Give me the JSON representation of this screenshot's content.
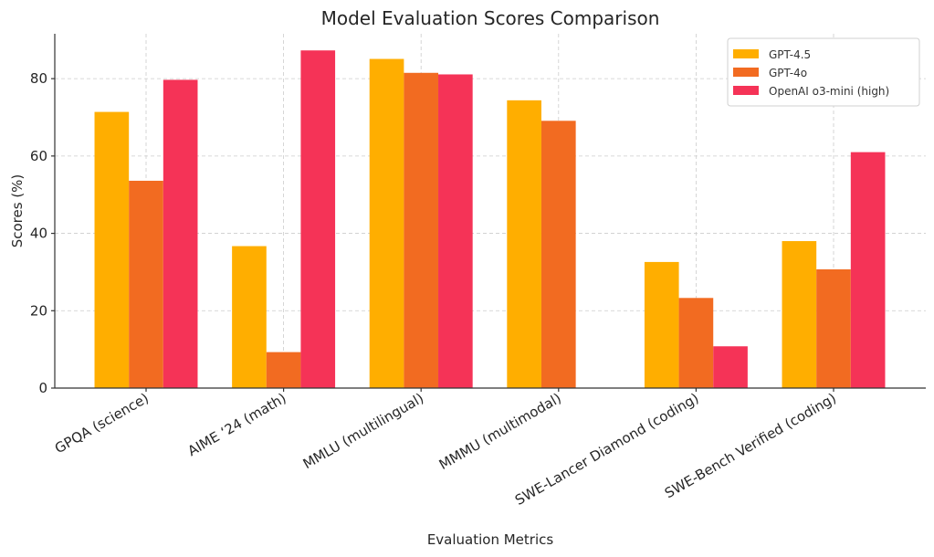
{
  "chart_data": {
    "type": "bar",
    "title": "Model Evaluation Scores Comparison",
    "xlabel": "Evaluation Metrics",
    "ylabel": "Scores (%)",
    "ylim": [
      0,
      91.6
    ],
    "yticks": [
      0,
      20,
      40,
      60,
      80
    ],
    "grid": true,
    "legend_position": "top-right",
    "categories": [
      "GPQA (science)",
      "AIME ‘24 (math)",
      "MMLU (multilingual)",
      "MMMU (multimodal)",
      "SWE-Lancer Diamond (coding)",
      "SWE-Bench Verified (coding)"
    ],
    "series": [
      {
        "name": "GPT-4.5",
        "color": "#FFAE00",
        "values": [
          71.4,
          36.7,
          85.1,
          74.4,
          32.6,
          38.0
        ]
      },
      {
        "name": "GPT-4o",
        "color": "#F26B21",
        "values": [
          53.6,
          9.3,
          81.5,
          69.1,
          23.3,
          30.7
        ]
      },
      {
        "name": "OpenAI o3-mini (high)",
        "color": "#F53357",
        "values": [
          79.7,
          87.3,
          81.1,
          0,
          10.8,
          61.0
        ]
      }
    ]
  }
}
